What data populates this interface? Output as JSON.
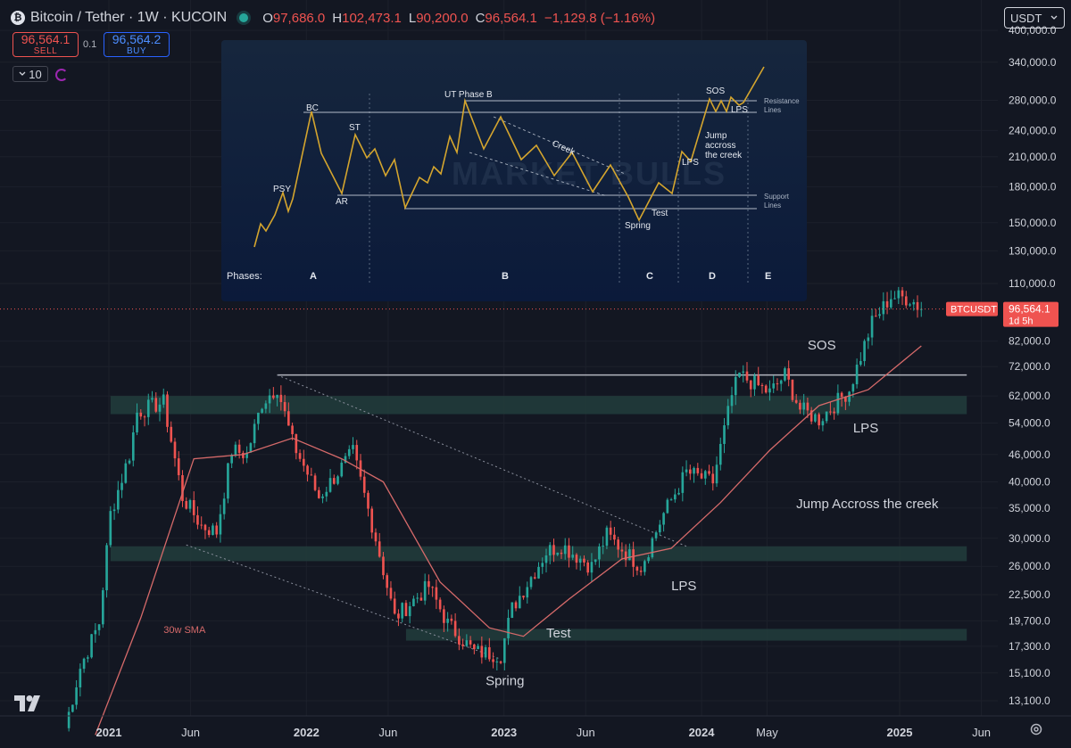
{
  "header": {
    "symbol_logo": "₿",
    "title": "Bitcoin / Tether · 1W · KUCOIN",
    "ohlc": [
      {
        "k": "O",
        "v": "97,686.0"
      },
      {
        "k": "H",
        "v": "102,473.1"
      },
      {
        "k": "L",
        "v": "90,200.0"
      },
      {
        "k": "C",
        "v": "96,564.1"
      },
      {
        "k": "",
        "v": "−1,129.8 (−1.16%)"
      }
    ]
  },
  "trade": {
    "sell_price": "96,564.1",
    "sell_label": "SELL",
    "spread": "0.1",
    "buy_price": "96,564.2",
    "buy_label": "BUY"
  },
  "interval": "10",
  "currency": "USDT",
  "icons": {
    "menu_chevron": "chevron-down-icon",
    "settings": "gear-icon",
    "logo": "tradingview-logo"
  },
  "colors": {
    "up": "#26a69a",
    "down": "#ef5350",
    "sma": "#d66a6a",
    "bg": "#131722",
    "zone": "#1f3b3a"
  },
  "chart_data": {
    "type": "candlestick",
    "scale": "log",
    "y_ticks": [
      13100,
      15100,
      17300,
      19700,
      22500,
      26000,
      30000,
      35000,
      40000,
      46000,
      54000,
      62000,
      72000,
      82000,
      110000,
      130000,
      150000,
      180000,
      210000,
      240000,
      280000,
      340000,
      400000
    ],
    "y_tick_labels": [
      "13,100.0",
      "15,100.0",
      "17,300.0",
      "19,700.0",
      "22,500.0",
      "26,000.0",
      "30,000.0",
      "35,000.0",
      "40,000.0",
      "46,000.0",
      "54,000.0",
      "62,000.0",
      "72,000.0",
      "82,000.0",
      "110,000.0",
      "130,000.0",
      "150,000.0",
      "180,000.0",
      "210,000.0",
      "240,000.0",
      "280,000.0",
      "340,000.0",
      "400,000.0"
    ],
    "x_ticks": [
      {
        "label": "2021",
        "date": "2021-01-01",
        "bold": true
      },
      {
        "label": "Jun",
        "date": "2021-06-01",
        "bold": false
      },
      {
        "label": "2022",
        "date": "2022-01-01",
        "bold": true
      },
      {
        "label": "Jun",
        "date": "2022-06-01",
        "bold": false
      },
      {
        "label": "2023",
        "date": "2023-01-01",
        "bold": true
      },
      {
        "label": "Jun",
        "date": "2023-06-01",
        "bold": false
      },
      {
        "label": "2024",
        "date": "2024-01-01",
        "bold": true
      },
      {
        "label": "May",
        "date": "2024-05-01",
        "bold": false
      },
      {
        "label": "2025",
        "date": "2025-01-01",
        "bold": true
      },
      {
        "label": "Jun",
        "date": "2025-06-01",
        "bold": false
      }
    ],
    "price_path": [
      [
        "2020-10-12",
        11400
      ],
      [
        "2020-11-09",
        15500
      ],
      [
        "2020-12-14",
        19500
      ],
      [
        "2021-01-04",
        34000
      ],
      [
        "2021-02-08",
        46000
      ],
      [
        "2021-02-22",
        57000
      ],
      [
        "2021-03-15",
        58500
      ],
      [
        "2021-04-12",
        60000
      ],
      [
        "2021-05-17",
        37000
      ],
      [
        "2021-06-21",
        32000
      ],
      [
        "2021-07-19",
        31000
      ],
      [
        "2021-08-16",
        47000
      ],
      [
        "2021-09-13",
        46000
      ],
      [
        "2021-10-11",
        60000
      ],
      [
        "2021-11-08",
        65000
      ],
      [
        "2021-12-06",
        49000
      ],
      [
        "2022-01-24",
        37000
      ],
      [
        "2022-03-28",
        46500
      ],
      [
        "2022-05-09",
        30000
      ],
      [
        "2022-06-13",
        20000
      ],
      [
        "2022-08-15",
        23500
      ],
      [
        "2022-09-19",
        19400
      ],
      [
        "2022-11-07",
        16800
      ],
      [
        "2022-12-26",
        16600
      ],
      [
        "2023-01-16",
        21000
      ],
      [
        "2023-03-20",
        28000
      ],
      [
        "2023-04-17",
        29000
      ],
      [
        "2023-06-12",
        26000
      ],
      [
        "2023-07-10",
        30500
      ],
      [
        "2023-09-11",
        26000
      ],
      [
        "2023-10-23",
        34000
      ],
      [
        "2023-12-04",
        42000
      ],
      [
        "2024-01-22",
        40000
      ],
      [
        "2024-02-26",
        62000
      ],
      [
        "2024-03-11",
        69000
      ],
      [
        "2024-05-06",
        63000
      ],
      [
        "2024-06-03",
        69000
      ],
      [
        "2024-07-01",
        58000
      ],
      [
        "2024-08-05",
        55000
      ],
      [
        "2024-09-30",
        64000
      ],
      [
        "2024-11-11",
        90000
      ],
      [
        "2024-12-16",
        103000
      ],
      [
        "2025-01-20",
        102000
      ],
      [
        "2025-02-10",
        96564.1
      ]
    ],
    "sma_path": [
      [
        "2020-12-07",
        11000
      ],
      [
        "2021-03-01",
        20000
      ],
      [
        "2021-06-07",
        45000
      ],
      [
        "2021-09-06",
        46000
      ],
      [
        "2021-12-06",
        50000
      ],
      [
        "2022-03-07",
        45000
      ],
      [
        "2022-05-23",
        40000
      ],
      [
        "2022-09-05",
        24000
      ],
      [
        "2022-12-05",
        19000
      ],
      [
        "2023-02-06",
        18200
      ],
      [
        "2023-05-01",
        22000
      ],
      [
        "2023-08-07",
        27000
      ],
      [
        "2023-11-06",
        28500
      ],
      [
        "2024-02-05",
        36000
      ],
      [
        "2024-05-06",
        47000
      ],
      [
        "2024-08-05",
        59000
      ],
      [
        "2024-11-04",
        64000
      ],
      [
        "2025-02-10",
        80000
      ]
    ],
    "zones": [
      {
        "start": "2021-01-04",
        "end": "2025-05-05",
        "low": 56500,
        "high": 62000
      },
      {
        "start": "2021-01-04",
        "end": "2025-05-05",
        "low": 26700,
        "high": 28800
      },
      {
        "start": "2022-07-04",
        "end": "2025-05-05",
        "low": 17800,
        "high": 18900
      }
    ],
    "resistance_line": {
      "start": "2021-11-08",
      "end": "2025-05-05",
      "value": 69000
    },
    "dotted_lines": [
      {
        "from": [
          "2021-11-08",
          69000
        ],
        "to": [
          "2023-12-04",
          28800
        ]
      },
      {
        "from": [
          "2021-05-24",
          29000
        ],
        "to": [
          "2022-12-26",
          16200
        ]
      }
    ],
    "annotations": [
      {
        "text": "SOS",
        "date": "2024-07-15",
        "value": 78500
      },
      {
        "text": "LPS",
        "date": "2024-10-07",
        "value": 51500
      },
      {
        "text": "Jump Accross the creek",
        "date": "2024-06-24",
        "value": 35000
      },
      {
        "text": "LPS",
        "date": "2023-11-06",
        "value": 23000
      },
      {
        "text": "Test",
        "date": "2023-03-20",
        "value": 18100
      },
      {
        "text": "Spring",
        "date": "2022-11-28",
        "value": 14200
      },
      {
        "text": "30w SMA",
        "date": "2021-04-12",
        "value": 18500
      }
    ],
    "current_price_tag": {
      "symbol": "BTCUSDT",
      "price": "96,564.1",
      "countdown": "1d 5h",
      "value": 96564.1
    }
  },
  "inset": {
    "watermark": "MARKET BULLS",
    "labels": {
      "psy": "PSY",
      "bc": "BC",
      "ar": "AR",
      "st": "ST",
      "ut": "UT Phase B",
      "creek": "Creek",
      "spring": "Spring",
      "test": "Test",
      "lps_low": "LPS",
      "jump1": "Jump",
      "jump2": "accross",
      "jump3": "the creek",
      "sos": "SOS",
      "lps_high": "LPS",
      "resistance1": "Resistance",
      "resistance2": "Lines",
      "support1": "Support",
      "support2": "Lines"
    },
    "phases_label": "Phases:",
    "phases": [
      "A",
      "B",
      "C",
      "D",
      "E"
    ]
  }
}
